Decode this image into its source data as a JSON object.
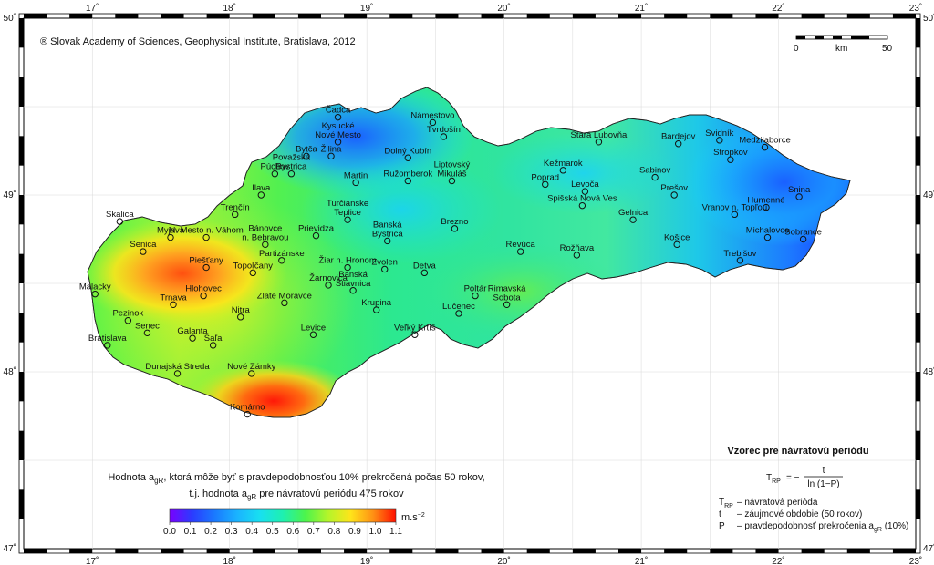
{
  "copyright": "® Slovak Academy of Sciences, Geophysical Institute, Bratislava, 2012",
  "scale_bar": {
    "start": "0",
    "unit": "km",
    "end": "50"
  },
  "lon_ticks": [
    "17˚",
    "18˚",
    "19˚",
    "20˚",
    "21˚",
    "22˚",
    "23˚"
  ],
  "lat_ticks": [
    "50˚",
    "49˚",
    "48˚",
    "47˚"
  ],
  "description": {
    "line1_pre": "Hodnota a",
    "line1_sub": "gR",
    "line1_post": ", ktorá môže byť s pravdepodobnosťou 10% prekročená počas 50 rokov,",
    "line2_pre": "t.j. hodnota a",
    "line2_sub": "gR",
    "line2_post": " pre návratovú periódu 475 rokov"
  },
  "colorbar": {
    "ticks": [
      "0.0",
      "0.1",
      "0.2",
      "0.3",
      "0.4",
      "0.5",
      "0.6",
      "0.7",
      "0.8",
      "0.9",
      "1.0",
      "1.1"
    ],
    "unit": "m.s",
    "unit_sup": "−2",
    "colors": [
      "#7a00ff",
      "#2a3cff",
      "#1aa0ff",
      "#18d8ff",
      "#1ef0b0",
      "#4cf44c",
      "#b4f52a",
      "#ffe41a",
      "#ffa014",
      "#ff4a0a",
      "#ff1000"
    ]
  },
  "formula": {
    "title": "Vzorec pre návratovú periódu",
    "lhs": "T",
    "lhs_sub": "RP",
    "equals": "= −",
    "numerator": "t",
    "denominator": "ln (1−P)",
    "definitions": [
      {
        "sym": "T",
        "sym_sub": "RP",
        "text": "– návratová perióda"
      },
      {
        "sym": "t",
        "sym_sub": "",
        "text": "– záujmové obdobie (50 rokov)"
      },
      {
        "sym": "P",
        "sym_sub": "",
        "text": "– pravdepodobnosť prekročenia a",
        "text_sub": "gR",
        "text_post": " (10%)"
      }
    ]
  },
  "cities": [
    {
      "name": "Čadca",
      "lon": 18.79,
      "lat": 49.44
    },
    {
      "name": "Námestovo",
      "lon": 19.48,
      "lat": 49.41
    },
    {
      "name": "Kysucké\nNové Mesto",
      "lon": 18.79,
      "lat": 49.3
    },
    {
      "name": "Bytča",
      "lon": 18.56,
      "lat": 49.22
    },
    {
      "name": "Tvrdošín",
      "lon": 19.56,
      "lat": 49.33
    },
    {
      "name": "Žilina",
      "lon": 18.74,
      "lat": 49.22
    },
    {
      "name": "Púchov",
      "lon": 18.33,
      "lat": 49.12
    },
    {
      "name": "Považská\nBystrica",
      "lon": 18.45,
      "lat": 49.12
    },
    {
      "name": "Dolný Kubín",
      "lon": 19.3,
      "lat": 49.21
    },
    {
      "name": "Martin",
      "lon": 18.92,
      "lat": 49.07
    },
    {
      "name": "Ružomberok",
      "lon": 19.3,
      "lat": 49.08
    },
    {
      "name": "Liptovský\nMikuláš",
      "lon": 19.62,
      "lat": 49.08
    },
    {
      "name": "Ilava",
      "lon": 18.23,
      "lat": 49.0
    },
    {
      "name": "Trenčín",
      "lon": 18.04,
      "lat": 48.89
    },
    {
      "name": "Turčianske\nTeplice",
      "lon": 18.86,
      "lat": 48.86
    },
    {
      "name": "Prievidza",
      "lon": 18.63,
      "lat": 48.77
    },
    {
      "name": "Bánovce\nn. Bebravou",
      "lon": 18.26,
      "lat": 48.72
    },
    {
      "name": "N. Mesto n. Váhom",
      "lon": 17.83,
      "lat": 48.76
    },
    {
      "name": "Skalica",
      "lon": 17.2,
      "lat": 48.85
    },
    {
      "name": "Myjava",
      "lon": 17.57,
      "lat": 48.76
    },
    {
      "name": "Senica",
      "lon": 17.37,
      "lat": 48.68
    },
    {
      "name": "Piešťany",
      "lon": 17.83,
      "lat": 48.59
    },
    {
      "name": "Partizánske",
      "lon": 18.38,
      "lat": 48.63
    },
    {
      "name": "Žiar n. Hronom",
      "lon": 18.86,
      "lat": 48.59
    },
    {
      "name": "Banská\nBystrica",
      "lon": 19.15,
      "lat": 48.74
    },
    {
      "name": "Brezno",
      "lon": 19.64,
      "lat": 48.81
    },
    {
      "name": "Zvolen",
      "lon": 19.13,
      "lat": 48.58
    },
    {
      "name": "Detva",
      "lon": 19.42,
      "lat": 48.56
    },
    {
      "name": "Topoľčany",
      "lon": 18.17,
      "lat": 48.56
    },
    {
      "name": "Žarnovica",
      "lon": 18.72,
      "lat": 48.49
    },
    {
      "name": "Banská\nŠtiavnica",
      "lon": 18.9,
      "lat": 48.46
    },
    {
      "name": "Malacky",
      "lon": 17.02,
      "lat": 48.44
    },
    {
      "name": "Hlohovec",
      "lon": 17.81,
      "lat": 48.43
    },
    {
      "name": "Trnava",
      "lon": 17.59,
      "lat": 48.38
    },
    {
      "name": "Zlaté Moravce",
      "lon": 18.4,
      "lat": 48.39
    },
    {
      "name": "Pezinok",
      "lon": 17.26,
      "lat": 48.29
    },
    {
      "name": "Nitra",
      "lon": 18.08,
      "lat": 48.31
    },
    {
      "name": "Krupina",
      "lon": 19.07,
      "lat": 48.35
    },
    {
      "name": "Poltár",
      "lon": 19.79,
      "lat": 48.43
    },
    {
      "name": "Lučenec",
      "lon": 19.67,
      "lat": 48.33
    },
    {
      "name": "Rimavská\nSobota",
      "lon": 20.02,
      "lat": 48.38
    },
    {
      "name": "Senec",
      "lon": 17.4,
      "lat": 48.22
    },
    {
      "name": "Galanta",
      "lon": 17.73,
      "lat": 48.19
    },
    {
      "name": "Bratislava",
      "lon": 17.11,
      "lat": 48.15
    },
    {
      "name": "Šaľa",
      "lon": 17.88,
      "lat": 48.15
    },
    {
      "name": "Levice",
      "lon": 18.61,
      "lat": 48.21
    },
    {
      "name": "Veľký Krtíš",
      "lon": 19.35,
      "lat": 48.21
    },
    {
      "name": "Nové Zámky",
      "lon": 18.16,
      "lat": 47.99
    },
    {
      "name": "Dunajská Streda",
      "lon": 17.62,
      "lat": 47.99
    },
    {
      "name": "Komárno",
      "lon": 18.13,
      "lat": 47.76
    },
    {
      "name": "Revúca",
      "lon": 20.12,
      "lat": 48.68
    },
    {
      "name": "Rožňava",
      "lon": 20.53,
      "lat": 48.66
    },
    {
      "name": "Poprad",
      "lon": 20.3,
      "lat": 49.06
    },
    {
      "name": "Kežmarok",
      "lon": 20.43,
      "lat": 49.14
    },
    {
      "name": "Levoča",
      "lon": 20.59,
      "lat": 49.02
    },
    {
      "name": "Stará Ľubovňa",
      "lon": 20.69,
      "lat": 49.3
    },
    {
      "name": "Spišská Nová Ves",
      "lon": 20.57,
      "lat": 48.94
    },
    {
      "name": "Gelnica",
      "lon": 20.94,
      "lat": 48.86
    },
    {
      "name": "Košice",
      "lon": 21.26,
      "lat": 48.72
    },
    {
      "name": "Sabinov",
      "lon": 21.1,
      "lat": 49.1
    },
    {
      "name": "Prešov",
      "lon": 21.24,
      "lat": 49.0
    },
    {
      "name": "Bardejov",
      "lon": 21.27,
      "lat": 49.29
    },
    {
      "name": "Svidník",
      "lon": 21.57,
      "lat": 49.31
    },
    {
      "name": "Stropkov",
      "lon": 21.65,
      "lat": 49.2
    },
    {
      "name": "Medzilaborce",
      "lon": 21.9,
      "lat": 49.27
    },
    {
      "name": "Humenné",
      "lon": 21.91,
      "lat": 48.93
    },
    {
      "name": "Vranov n. Topľou",
      "lon": 21.68,
      "lat": 48.89
    },
    {
      "name": "Snina",
      "lon": 22.15,
      "lat": 48.99
    },
    {
      "name": "Michalovce",
      "lon": 21.92,
      "lat": 48.76
    },
    {
      "name": "Sobrance",
      "lon": 22.18,
      "lat": 48.75
    },
    {
      "name": "Trebišov",
      "lon": 21.72,
      "lat": 48.63
    }
  ]
}
